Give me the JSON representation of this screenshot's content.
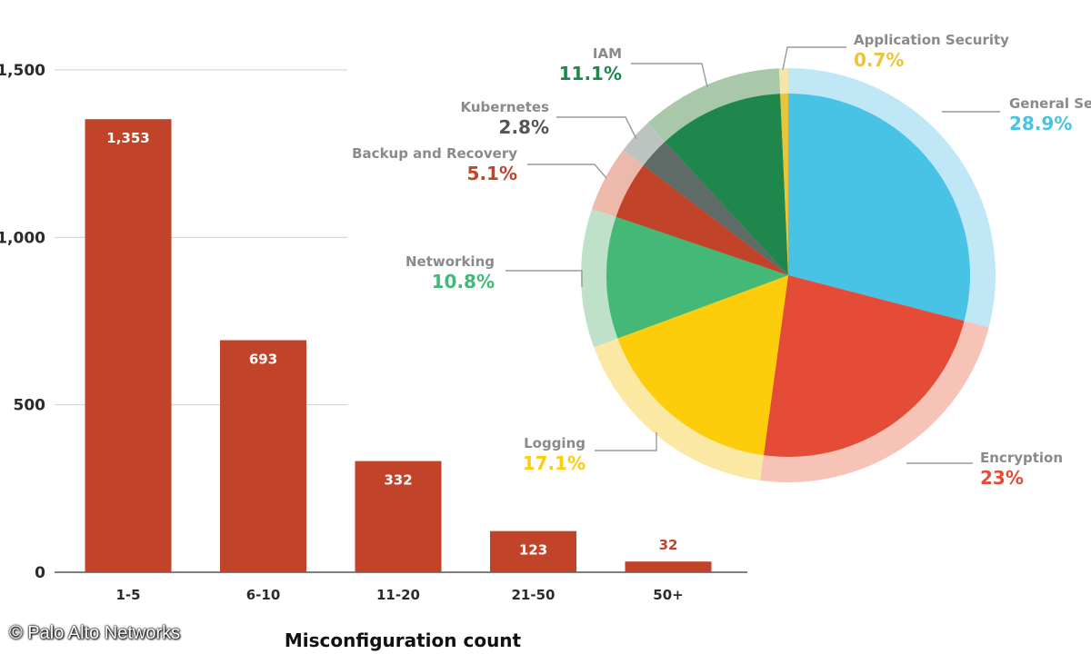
{
  "chart_data": [
    {
      "type": "bar",
      "categories": [
        "1-5",
        "6-10",
        "11-20",
        "21-50",
        "50+"
      ],
      "values": [
        1353,
        693,
        332,
        123,
        32
      ],
      "value_labels": [
        "1,353",
        "693",
        "332",
        "123",
        "32"
      ],
      "title": "",
      "xlabel": "Misconfiguration count",
      "ylabel": "",
      "ylim": [
        0,
        1500
      ],
      "yticks": [
        0,
        500,
        1000,
        1500
      ],
      "ytick_labels": [
        "0",
        "500",
        "1,000",
        "1,500"
      ],
      "grid": true,
      "bar_color": "#c1432a"
    },
    {
      "type": "pie",
      "slices": [
        {
          "label": "General Security",
          "value": 28.9,
          "pct_label": "28.9%",
          "color": "#48c2e5",
          "ring_color": "#bfe7f5"
        },
        {
          "label": "Encryption",
          "value": 23.0,
          "pct_label": "23%",
          "color": "#e44c37",
          "ring_color": "#f6c3b6"
        },
        {
          "label": "Logging",
          "value": 17.1,
          "pct_label": "17.1%",
          "color": "#fdcc0b",
          "ring_color": "#fae8a3"
        },
        {
          "label": "Networking",
          "value": 10.8,
          "pct_label": "10.8%",
          "color": "#43b877",
          "ring_color": "#bfe1c9"
        },
        {
          "label": "Backup and Recovery",
          "value": 5.1,
          "pct_label": "5.1%",
          "color": "#c1432a",
          "ring_color": "#edb9aa"
        },
        {
          "label": "Kubernetes",
          "value": 2.8,
          "pct_label": "2.8%",
          "color": "#5f6b66",
          "ring_color": "#bdc4c0"
        },
        {
          "label": "IAM",
          "value": 11.1,
          "pct_label": "11.1%",
          "color": "#1f864c",
          "ring_color": "#a9c8aa"
        },
        {
          "label": "Application Security",
          "value": 0.7,
          "pct_label": "0.7%",
          "color": "#eac53a",
          "ring_color": "#f4e6aa"
        }
      ]
    }
  ],
  "credit": "© Palo Alto Networks",
  "colors": {
    "axis": "#333333",
    "grid": "#d0d0d0",
    "tick_text": "#2b2b2b",
    "name_text": "#8a8a8a",
    "leader": "#9a9a9a"
  }
}
